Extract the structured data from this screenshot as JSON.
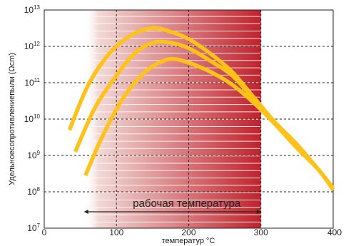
{
  "chart_data": {
    "type": "line",
    "title": "",
    "xlabel": "температур °C",
    "ylabel": "Удельноесопротивлениепыли (Ωcm)",
    "xlim": [
      0,
      400
    ],
    "ylim_exponent": [
      7,
      13
    ],
    "yscale": "log",
    "x_ticks": [
      "0",
      "100",
      "200",
      "300",
      "400"
    ],
    "y_ticks": [
      {
        "base": "10",
        "exp": "7"
      },
      {
        "base": "10",
        "exp": "8"
      },
      {
        "base": "10",
        "exp": "9"
      },
      {
        "base": "10",
        "exp": "10"
      },
      {
        "base": "10",
        "exp": "11"
      },
      {
        "base": "10",
        "exp": "12"
      },
      {
        "base": "10",
        "exp": "13"
      }
    ],
    "grid": "dashed",
    "band": {
      "label": "рабочая температура",
      "from": 55,
      "to": 300
    },
    "series": [
      {
        "x": [
          35,
          60,
          90,
          120,
          150,
          175,
          200,
          230,
          260,
          290,
          320,
          350,
          380,
          400
        ],
        "y": [
          9.7,
          10.9,
          11.8,
          12.3,
          12.5,
          12.4,
          12.2,
          11.8,
          11.3,
          10.6,
          9.9,
          9.3,
          8.6,
          8.1
        ]
      },
      {
        "x": [
          43,
          70,
          100,
          125,
          150,
          175,
          200,
          230,
          260,
          290,
          320,
          350,
          380,
          400
        ],
        "y": [
          9.1,
          10.3,
          11.2,
          11.8,
          12.1,
          12.1,
          11.95,
          11.6,
          11.2,
          10.55,
          9.9,
          9.25,
          8.6,
          8.1
        ]
      },
      {
        "x": [
          57,
          80,
          110,
          140,
          165,
          180,
          200,
          230,
          260,
          290,
          320,
          350,
          380,
          400
        ],
        "y": [
          8.45,
          9.5,
          10.6,
          11.3,
          11.6,
          11.65,
          11.55,
          11.3,
          10.95,
          10.45,
          9.85,
          9.2,
          8.6,
          8.05
        ]
      }
    ]
  },
  "colors": {
    "curve": "#ffc21a",
    "band_start": "#f2d9d6",
    "band_end": "#c0222c",
    "grid": "#222222",
    "band_line": "#ffffff"
  }
}
